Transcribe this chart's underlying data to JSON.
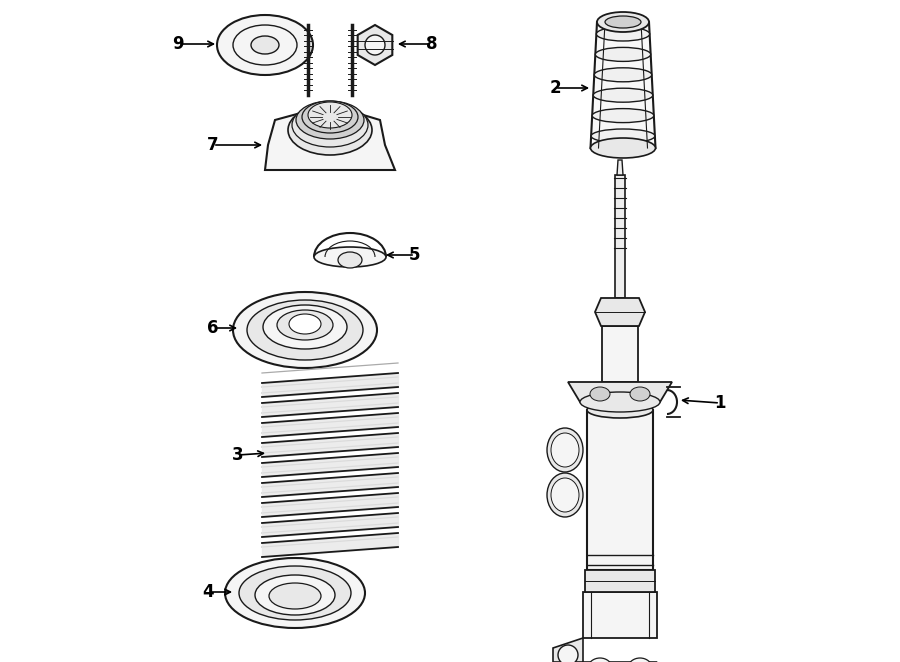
{
  "bg_color": "#ffffff",
  "lc": "#1a1a1a",
  "lf": "#f5f5f5",
  "mf": "#e8e8e8",
  "df": "#d0d0d0",
  "fig_width": 9.0,
  "fig_height": 6.62,
  "dpi": 100
}
